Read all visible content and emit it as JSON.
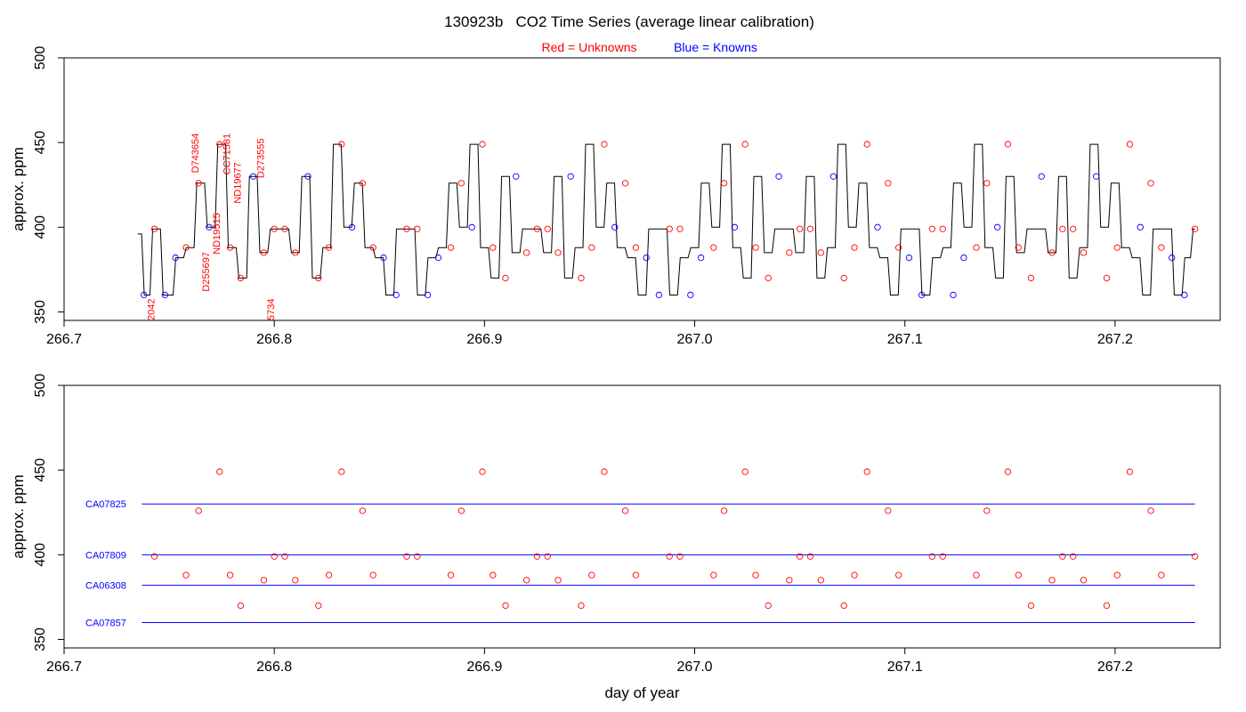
{
  "title": "130923b   CO2 Time Series (average linear calibration)",
  "legend": {
    "red_label": "Red = Unknowns",
    "blue_label": "Blue = Knowns"
  },
  "colors": {
    "unknown": "#ff0000",
    "known": "#0000ff",
    "trace": "#000000",
    "axis": "#000000"
  },
  "chart_data": [
    {
      "type": "line",
      "panel": "top",
      "ylabel": "approx. ppm",
      "xlabel": "",
      "xlim": [
        266.7,
        267.25
      ],
      "ylim": [
        345,
        500
      ],
      "x_ticks": [
        "266.7",
        "266.8",
        "266.9",
        "267.0",
        "267.1",
        "267.2"
      ],
      "y_ticks": [
        "350",
        "400",
        "450",
        "500"
      ],
      "series": [
        {
          "role": "trace",
          "x": [
            266.735,
            266.74,
            266.743,
            266.75,
            266.755,
            266.76,
            266.765,
            266.77,
            266.775,
            266.78,
            266.785,
            266.79,
            266.795,
            266.8,
            266.805,
            266.81,
            266.815,
            266.82,
            266.825,
            266.83,
            266.835,
            266.84,
            266.845,
            266.85,
            266.855,
            266.86,
            266.865,
            266.87,
            266.875,
            266.88,
            266.885,
            266.89,
            266.895,
            266.9,
            266.905,
            266.91,
            266.915,
            266.92,
            266.925,
            266.93,
            266.935,
            266.94,
            266.945,
            266.95,
            266.955,
            266.96,
            266.965,
            266.97,
            266.975,
            266.98,
            266.985,
            266.99,
            266.995,
            267.0,
            267.005,
            267.01,
            267.015,
            267.02,
            267.025,
            267.03,
            267.035,
            267.04,
            267.045,
            267.05,
            267.055,
            267.06,
            267.065,
            267.07,
            267.075,
            267.08,
            267.085,
            267.09,
            267.095,
            267.1,
            267.105,
            267.11,
            267.115,
            267.12,
            267.125,
            267.13,
            267.135,
            267.14,
            267.145,
            267.15,
            267.155,
            267.16,
            267.165,
            267.17,
            267.175,
            267.18,
            267.185,
            267.19,
            267.195,
            267.2,
            267.205,
            267.21,
            267.215,
            267.22,
            267.225,
            267.23,
            267.235,
            267.238
          ],
          "y": [
            396,
            360,
            399,
            360,
            382,
            388,
            426,
            400,
            449,
            388,
            370,
            430,
            385,
            399,
            399,
            385,
            430,
            370,
            388,
            449,
            400,
            426,
            388,
            382,
            360,
            399,
            399,
            360,
            382,
            388,
            426,
            400,
            449,
            388,
            370,
            430,
            385,
            399,
            399,
            385,
            430,
            370,
            388,
            449,
            400,
            426,
            388,
            382,
            360,
            399,
            399,
            360,
            382,
            388,
            426,
            400,
            449,
            388,
            370,
            430,
            385,
            399,
            399,
            385,
            430,
            370,
            388,
            449,
            400,
            426,
            388,
            382,
            360,
            399,
            399,
            360,
            382,
            388,
            426,
            400,
            449,
            388,
            370,
            430,
            385,
            399,
            399,
            385,
            430,
            370,
            388,
            449,
            400,
            426,
            388,
            382,
            360,
            399,
            399,
            360,
            382,
            399
          ]
        },
        {
          "name": "Unknowns",
          "role": "unknown",
          "points": [
            [
              266.743,
              399
            ],
            [
              266.758,
              388
            ],
            [
              266.764,
              426
            ],
            [
              266.774,
              449
            ],
            [
              266.779,
              388
            ],
            [
              266.784,
              370
            ],
            [
              266.795,
              385
            ],
            [
              266.8,
              399
            ],
            [
              266.805,
              399
            ],
            [
              266.81,
              385
            ],
            [
              266.821,
              370
            ],
            [
              266.826,
              388
            ],
            [
              266.832,
              449
            ],
            [
              266.842,
              426
            ],
            [
              266.847,
              388
            ],
            [
              266.863,
              399
            ],
            [
              266.868,
              399
            ],
            [
              266.884,
              388
            ],
            [
              266.889,
              426
            ],
            [
              266.899,
              449
            ],
            [
              266.904,
              388
            ],
            [
              266.91,
              370
            ],
            [
              266.92,
              385
            ],
            [
              266.925,
              399
            ],
            [
              266.93,
              399
            ],
            [
              266.935,
              385
            ],
            [
              266.946,
              370
            ],
            [
              266.951,
              388
            ],
            [
              266.957,
              449
            ],
            [
              266.967,
              426
            ],
            [
              266.972,
              388
            ],
            [
              266.988,
              399
            ],
            [
              266.993,
              399
            ],
            [
              267.009,
              388
            ],
            [
              267.014,
              426
            ],
            [
              267.024,
              449
            ],
            [
              267.029,
              388
            ],
            [
              267.035,
              370
            ],
            [
              267.045,
              385
            ],
            [
              267.05,
              399
            ],
            [
              267.055,
              399
            ],
            [
              267.06,
              385
            ],
            [
              267.071,
              370
            ],
            [
              267.076,
              388
            ],
            [
              267.082,
              449
            ],
            [
              267.092,
              426
            ],
            [
              267.097,
              388
            ],
            [
              267.113,
              399
            ],
            [
              267.118,
              399
            ],
            [
              267.134,
              388
            ],
            [
              267.139,
              426
            ],
            [
              267.149,
              449
            ],
            [
              267.154,
              388
            ],
            [
              267.16,
              370
            ],
            [
              267.17,
              385
            ],
            [
              267.175,
              399
            ],
            [
              267.18,
              399
            ],
            [
              267.185,
              385
            ],
            [
              267.196,
              370
            ],
            [
              267.201,
              388
            ],
            [
              267.207,
              449
            ],
            [
              267.217,
              426
            ],
            [
              267.222,
              388
            ],
            [
              267.238,
              399
            ]
          ]
        },
        {
          "name": "Knowns",
          "role": "known",
          "points": [
            [
              266.738,
              360
            ],
            [
              266.748,
              360
            ],
            [
              266.753,
              382
            ],
            [
              266.769,
              400
            ],
            [
              266.79,
              430
            ],
            [
              266.816,
              430
            ],
            [
              266.837,
              400
            ],
            [
              266.852,
              382
            ],
            [
              266.858,
              360
            ],
            [
              266.873,
              360
            ],
            [
              266.878,
              382
            ],
            [
              266.894,
              400
            ],
            [
              266.915,
              430
            ],
            [
              266.941,
              430
            ],
            [
              266.962,
              400
            ],
            [
              266.977,
              382
            ],
            [
              266.983,
              360
            ],
            [
              266.998,
              360
            ],
            [
              267.003,
              382
            ],
            [
              267.019,
              400
            ],
            [
              267.04,
              430
            ],
            [
              267.066,
              430
            ],
            [
              267.087,
              400
            ],
            [
              267.102,
              382
            ],
            [
              267.108,
              360
            ],
            [
              267.123,
              360
            ],
            [
              267.128,
              382
            ],
            [
              267.144,
              400
            ],
            [
              267.165,
              430
            ],
            [
              267.191,
              430
            ],
            [
              267.212,
              400
            ],
            [
              267.227,
              382
            ],
            [
              267.233,
              360
            ]
          ]
        }
      ],
      "annotations": [
        {
          "text": "2042",
          "x": 266.743,
          "y": 345
        },
        {
          "text": "D743654",
          "x": 266.764,
          "y": 432
        },
        {
          "text": "D255697",
          "x": 266.769,
          "y": 362
        },
        {
          "text": "CC71581",
          "x": 266.779,
          "y": 431
        },
        {
          "text": "ND19515",
          "x": 266.774,
          "y": 384
        },
        {
          "text": "ND19677",
          "x": 266.784,
          "y": 414
        },
        {
          "text": "D273555",
          "x": 266.795,
          "y": 429
        },
        {
          "text": "5734",
          "x": 266.8,
          "y": 345
        }
      ]
    },
    {
      "type": "scatter",
      "panel": "bottom",
      "ylabel": "approx. ppm",
      "xlabel": "day of year",
      "xlim": [
        266.7,
        267.25
      ],
      "ylim": [
        345,
        500
      ],
      "x_ticks": [
        "266.7",
        "266.8",
        "266.9",
        "267.0",
        "267.1",
        "267.2"
      ],
      "y_ticks": [
        "350",
        "400",
        "450",
        "500"
      ],
      "reference_lines": [
        {
          "name": "CA07825",
          "y": 430,
          "x_start": 266.737,
          "x_end": 267.238
        },
        {
          "name": "CA07809",
          "y": 400,
          "x_start": 266.737,
          "x_end": 267.238
        },
        {
          "name": "CA06308",
          "y": 382,
          "x_start": 266.737,
          "x_end": 267.238
        },
        {
          "name": "CA07857",
          "y": 360,
          "x_start": 266.737,
          "x_end": 267.238
        }
      ],
      "series": [
        {
          "name": "Unknowns",
          "role": "unknown",
          "points": [
            [
              266.743,
              399
            ],
            [
              266.758,
              388
            ],
            [
              266.764,
              426
            ],
            [
              266.774,
              449
            ],
            [
              266.779,
              388
            ],
            [
              266.784,
              370
            ],
            [
              266.795,
              385
            ],
            [
              266.8,
              399
            ],
            [
              266.805,
              399
            ],
            [
              266.81,
              385
            ],
            [
              266.821,
              370
            ],
            [
              266.826,
              388
            ],
            [
              266.832,
              449
            ],
            [
              266.842,
              426
            ],
            [
              266.847,
              388
            ],
            [
              266.863,
              399
            ],
            [
              266.868,
              399
            ],
            [
              266.884,
              388
            ],
            [
              266.889,
              426
            ],
            [
              266.899,
              449
            ],
            [
              266.904,
              388
            ],
            [
              266.91,
              370
            ],
            [
              266.92,
              385
            ],
            [
              266.925,
              399
            ],
            [
              266.93,
              399
            ],
            [
              266.935,
              385
            ],
            [
              266.946,
              370
            ],
            [
              266.951,
              388
            ],
            [
              266.957,
              449
            ],
            [
              266.967,
              426
            ],
            [
              266.972,
              388
            ],
            [
              266.988,
              399
            ],
            [
              266.993,
              399
            ],
            [
              267.009,
              388
            ],
            [
              267.014,
              426
            ],
            [
              267.024,
              449
            ],
            [
              267.029,
              388
            ],
            [
              267.035,
              370
            ],
            [
              267.045,
              385
            ],
            [
              267.05,
              399
            ],
            [
              267.055,
              399
            ],
            [
              267.06,
              385
            ],
            [
              267.071,
              370
            ],
            [
              267.076,
              388
            ],
            [
              267.082,
              449
            ],
            [
              267.092,
              426
            ],
            [
              267.097,
              388
            ],
            [
              267.113,
              399
            ],
            [
              267.118,
              399
            ],
            [
              267.134,
              388
            ],
            [
              267.139,
              426
            ],
            [
              267.149,
              449
            ],
            [
              267.154,
              388
            ],
            [
              267.16,
              370
            ],
            [
              267.17,
              385
            ],
            [
              267.175,
              399
            ],
            [
              267.18,
              399
            ],
            [
              267.185,
              385
            ],
            [
              267.196,
              370
            ],
            [
              267.201,
              388
            ],
            [
              267.207,
              449
            ],
            [
              267.217,
              426
            ],
            [
              267.222,
              388
            ],
            [
              267.238,
              399
            ]
          ]
        }
      ]
    }
  ]
}
